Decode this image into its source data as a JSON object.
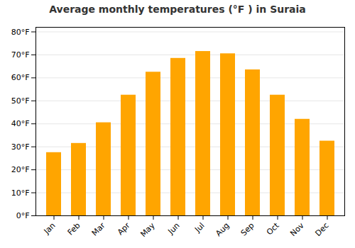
{
  "chart_data": {
    "type": "bar",
    "title": "Average monthly temperatures (°F ) in Suraia",
    "categories": [
      "Jan",
      "Feb",
      "Mar",
      "Apr",
      "May",
      "Jun",
      "Jul",
      "Aug",
      "Sep",
      "Oct",
      "Nov",
      "Dec"
    ],
    "values": [
      27.5,
      31.5,
      40.5,
      52.5,
      62.5,
      68.5,
      71.5,
      70.5,
      63.5,
      52.5,
      42.0,
      32.5
    ],
    "color": "#FFA500",
    "ylim": [
      0,
      82
    ],
    "yticks": [
      {
        "value": 0,
        "label": "0°F"
      },
      {
        "value": 10,
        "label": "10°F"
      },
      {
        "value": 20,
        "label": "20°F"
      },
      {
        "value": 30,
        "label": "30°F"
      },
      {
        "value": 40,
        "label": "40°F"
      },
      {
        "value": 50,
        "label": "50°F"
      },
      {
        "value": 60,
        "label": "60°F"
      },
      {
        "value": 70,
        "label": "70°F"
      },
      {
        "value": 80,
        "label": "80°F"
      }
    ],
    "grid": true
  }
}
